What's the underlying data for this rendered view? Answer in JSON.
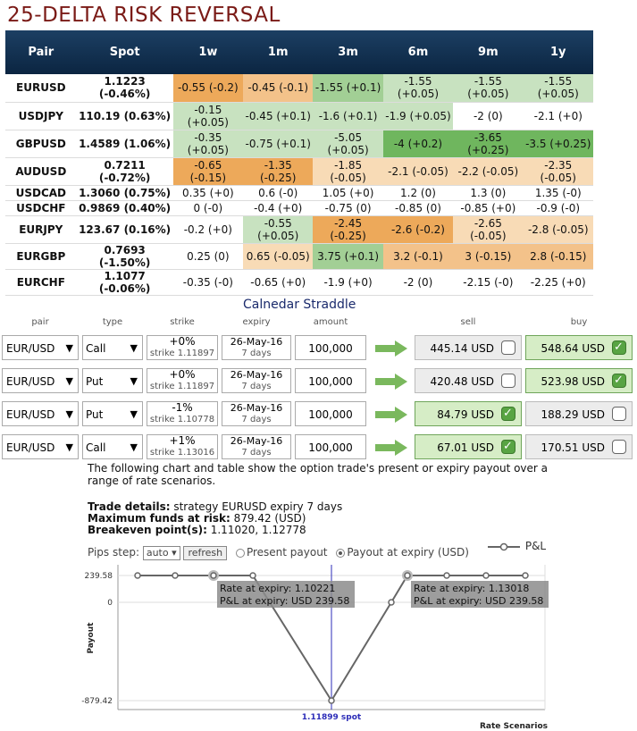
{
  "title": "25-DELTA RISK REVERSAL",
  "rr_headers": [
    "Pair",
    "Spot",
    "1w",
    "1m",
    "3m",
    "6m",
    "9m",
    "1y"
  ],
  "rr_rows": [
    {
      "pair": "EURUSD",
      "spot": "1.1223 (-0.46%)",
      "cells": [
        [
          "-0.55 (-0.2)",
          "o3"
        ],
        [
          "-0.45 (-0.1)",
          "o2"
        ],
        [
          "-1.55 (+0.1)",
          "g2"
        ],
        [
          "-1.55\n(+0.05)",
          "g1"
        ],
        [
          "-1.55\n(+0.05)",
          "g1"
        ],
        [
          "-1.55\n(+0.05)",
          "g1"
        ]
      ]
    },
    {
      "pair": "USDJPY",
      "spot": "110.19 (0.63%)",
      "cells": [
        [
          "-0.15\n(+0.05)",
          "g1"
        ],
        [
          "-0.45 (+0.1)",
          "g1"
        ],
        [
          "-1.6 (+0.1)",
          "g1"
        ],
        [
          "-1.9 (+0.05)",
          "g1"
        ],
        [
          "-2 (0)",
          "w"
        ],
        [
          "-2.1 (+0)",
          "w"
        ]
      ]
    },
    {
      "pair": "GBPUSD",
      "spot": "1.4589 (1.06%)",
      "cells": [
        [
          "-0.35\n(+0.05)",
          "g1"
        ],
        [
          "-0.75 (+0.1)",
          "g1"
        ],
        [
          "-5.05\n(+0.05)",
          "g1"
        ],
        [
          "-4 (+0.2)",
          "g3"
        ],
        [
          "-3.65\n(+0.25)",
          "g3"
        ],
        [
          "-3.5 (+0.25)",
          "g3"
        ]
      ]
    },
    {
      "pair": "AUDUSD",
      "spot": "0.7211 (-0.72%)",
      "cells": [
        [
          "-0.65\n(-0.15)",
          "o3"
        ],
        [
          "-1.35\n(-0.25)",
          "o3"
        ],
        [
          "-1.85 (-0.05)",
          "o1"
        ],
        [
          "-2.1 (-0.05)",
          "o1"
        ],
        [
          "-2.2 (-0.05)",
          "o1"
        ],
        [
          "-2.35 (-0.05)",
          "o1"
        ]
      ]
    },
    {
      "pair": "USDCAD",
      "spot": "1.3060 (0.75%)",
      "cells": [
        [
          "0.35 (+0)",
          "w"
        ],
        [
          "0.6 (-0)",
          "w"
        ],
        [
          "1.05 (+0)",
          "w"
        ],
        [
          "1.2 (0)",
          "w"
        ],
        [
          "1.3 (0)",
          "w"
        ],
        [
          "1.35 (-0)",
          "w"
        ]
      ]
    },
    {
      "pair": "USDCHF",
      "spot": "0.9869 (0.40%)",
      "cells": [
        [
          "0 (-0)",
          "w"
        ],
        [
          "-0.4 (+0)",
          "w"
        ],
        [
          "-0.75 (0)",
          "w"
        ],
        [
          "-0.85 (0)",
          "w"
        ],
        [
          "-0.85 (+0)",
          "w"
        ],
        [
          "-0.9 (-0)",
          "w"
        ]
      ]
    },
    {
      "pair": "EURJPY",
      "spot": "123.67 (0.16%)",
      "cells": [
        [
          "-0.2 (+0)",
          "w"
        ],
        [
          "-0.55\n(+0.05)",
          "g1"
        ],
        [
          "-2.45 (-0.25)",
          "o3"
        ],
        [
          "-2.6 (-0.2)",
          "o3"
        ],
        [
          "-2.65 (-0.05)",
          "o1"
        ],
        [
          "-2.8 (-0.05)",
          "o1"
        ]
      ]
    },
    {
      "pair": "EURGBP",
      "spot": "0.7693 (-1.50%)",
      "cells": [
        [
          "0.25 (0)",
          "w"
        ],
        [
          "0.65 (-0.05)",
          "o1"
        ],
        [
          "3.75 (+0.1)",
          "g2"
        ],
        [
          "3.2 (-0.1)",
          "o2"
        ],
        [
          "3 (-0.15)",
          "o2"
        ],
        [
          "2.8 (-0.15)",
          "o2"
        ]
      ]
    },
    {
      "pair": "EURCHF",
      "spot": "1.1077 (-0.06%)",
      "cells": [
        [
          "-0.35 (-0)",
          "w"
        ],
        [
          "-0.65 (+0)",
          "w"
        ],
        [
          "-1.9 (+0)",
          "w"
        ],
        [
          "-2 (0)",
          "w"
        ],
        [
          "-2.15 (-0)",
          "w"
        ],
        [
          "-2.25 (+0)",
          "w"
        ]
      ]
    }
  ],
  "straddle": {
    "title": "Calnedar Straddle",
    "headers": {
      "pair": "pair",
      "type": "type",
      "strike": "strike",
      "expiry": "expiry",
      "amount": "amount",
      "sell": "sell",
      "buy": "buy"
    },
    "rows": [
      {
        "pair": "EUR/USD",
        "type": "Call",
        "strike_pct": "+0%",
        "strike": "strike 1.11897",
        "expiry": "26-May-16",
        "days": "7 days",
        "amount": "100,000",
        "sell": "445.14 USD",
        "buy": "548.64 USD",
        "selected": "buy"
      },
      {
        "pair": "EUR/USD",
        "type": "Put",
        "strike_pct": "+0%",
        "strike": "strike 1.11897",
        "expiry": "26-May-16",
        "days": "7 days",
        "amount": "100,000",
        "sell": "420.48 USD",
        "buy": "523.98 USD",
        "selected": "buy"
      },
      {
        "pair": "EUR/USD",
        "type": "Put",
        "strike_pct": "-1%",
        "strike": "strike 1.10778",
        "expiry": "26-May-16",
        "days": "7 days",
        "amount": "100,000",
        "sell": "84.79 USD",
        "buy": "188.29 USD",
        "selected": "sell"
      },
      {
        "pair": "EUR/USD",
        "type": "Call",
        "strike_pct": "+1%",
        "strike": "strike 1.13016",
        "expiry": "26-May-16",
        "days": "7 days",
        "amount": "100,000",
        "sell": "67.01 USD",
        "buy": "170.51 USD",
        "selected": "sell"
      }
    ]
  },
  "description": "The following chart and table show the option trade's present or expiry payout over a range of rate scenarios.",
  "details": {
    "trade_label": "Trade details:",
    "trade_value": " strategy EURUSD expiry 7 days",
    "funds_label": "Maximum funds at risk:",
    "funds_value": " 879.42 (USD)",
    "breakeven_label": "Breakeven point(s):",
    "breakeven_value": " 1.11020, 1.12778"
  },
  "controls": {
    "pips_label": "Pips step:",
    "pips_value": "auto ▾",
    "refresh": "refresh",
    "present": "Present payout",
    "expiry": "Payout at expiry (USD)"
  },
  "chart_data": {
    "type": "line",
    "series": [
      {
        "name": "P&L",
        "values": [
          239.58,
          239.58,
          239.58,
          239.58,
          -879.42,
          0,
          239.58,
          239.58,
          239.58,
          239.58
        ]
      }
    ],
    "y_ticks": [
      "239.58",
      "0",
      "-879.42"
    ],
    "ylim": [
      -879.42,
      239.58
    ],
    "ylabel": "Payout",
    "xlabel": "Rate Scenarios",
    "spot_label": "1.11899 spot",
    "tooltips": [
      {
        "line1": "Rate at expiry: 1.10221",
        "line2": "P&L at expiry: USD 239.58"
      },
      {
        "line1": "Rate at expiry: 1.13018",
        "line2": "P&L at expiry: USD 239.58"
      }
    ]
  }
}
